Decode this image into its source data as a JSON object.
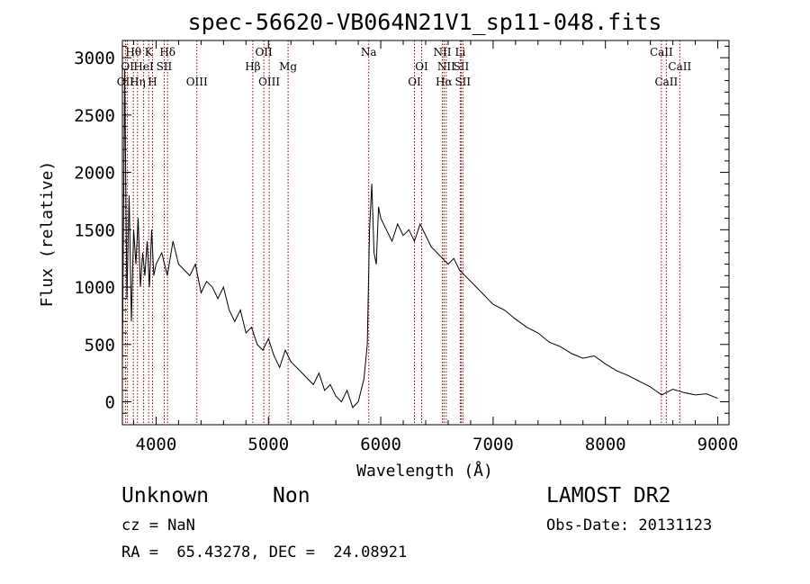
{
  "chart_data": {
    "type": "line",
    "title": "spec-56620-VB064N21V1_sp11-048.fits",
    "xlabel": "Wavelength (Å)",
    "ylabel": "Flux (relative)",
    "xlim": [
      3700,
      9100
    ],
    "ylim": [
      -200,
      3150
    ],
    "xticks": [
      4000,
      5000,
      6000,
      7000,
      8000,
      9000
    ],
    "yticks": [
      0,
      500,
      1000,
      1500,
      2000,
      2500,
      3000
    ],
    "grid": false,
    "series": [
      {
        "x": [
          3700,
          3720,
          3740,
          3760,
          3780,
          3800,
          3820,
          3840,
          3860,
          3880,
          3900,
          3920,
          3940,
          3960,
          3980,
          4000,
          4050,
          4100,
          4150,
          4200,
          4250,
          4300,
          4350,
          4400,
          4450,
          4500,
          4550,
          4600,
          4650,
          4700,
          4750,
          4800,
          4850,
          4900,
          4950,
          5000,
          5050,
          5100,
          5150,
          5200,
          5250,
          5300,
          5350,
          5400,
          5450,
          5500,
          5550,
          5600,
          5650,
          5700,
          5750,
          5800,
          5850,
          5880,
          5900,
          5920,
          5940,
          5960,
          5980,
          6000,
          6050,
          6100,
          6150,
          6200,
          6250,
          6300,
          6350,
          6400,
          6450,
          6500,
          6550,
          6600,
          6650,
          6700,
          6750,
          6800,
          6850,
          6900,
          6950,
          7000,
          7100,
          7200,
          7300,
          7400,
          7500,
          7600,
          7700,
          7800,
          7900,
          8000,
          8100,
          8200,
          8300,
          8400,
          8500,
          8600,
          8700,
          8800,
          8900,
          9000
        ],
        "y": [
          300,
          2900,
          900,
          1800,
          700,
          1500,
          1200,
          1600,
          1000,
          1300,
          1100,
          1400,
          1000,
          1500,
          1100,
          1200,
          1300,
          1100,
          1400,
          1200,
          1150,
          1100,
          1200,
          950,
          1050,
          1000,
          900,
          1000,
          800,
          700,
          800,
          600,
          650,
          500,
          450,
          550,
          400,
          300,
          450,
          350,
          300,
          250,
          200,
          150,
          250,
          100,
          150,
          50,
          0,
          100,
          -50,
          0,
          200,
          500,
          1500,
          1900,
          1300,
          1200,
          1700,
          1600,
          1500,
          1400,
          1550,
          1450,
          1500,
          1400,
          1550,
          1450,
          1350,
          1300,
          1250,
          1200,
          1250,
          1150,
          1100,
          1050,
          1000,
          950,
          900,
          850,
          800,
          720,
          650,
          600,
          520,
          480,
          420,
          380,
          400,
          330,
          270,
          230,
          180,
          130,
          60,
          110,
          80,
          60,
          70,
          30
        ]
      }
    ],
    "spectral_lines": [
      {
        "label": "Hθ",
        "x": 3798,
        "row": 1
      },
      {
        "label": "K",
        "x": 3934,
        "row": 1
      },
      {
        "label": "Hδ",
        "x": 4102,
        "row": 1
      },
      {
        "label": "OII",
        "x": 3727,
        "row": 3
      },
      {
        "label": "OI",
        "x": 3745,
        "row": 2
      },
      {
        "label": "HeI",
        "x": 3889,
        "row": 2
      },
      {
        "label": "SII",
        "x": 4072,
        "row": 2
      },
      {
        "label": "Hη",
        "x": 3835,
        "row": 3
      },
      {
        "label": "H",
        "x": 3968,
        "row": 3
      },
      {
        "label": "OIII",
        "x": 4363,
        "row": 3
      },
      {
        "label": "OII",
        "x": 4959,
        "row": 1
      },
      {
        "label": "Hβ",
        "x": 4861,
        "row": 2
      },
      {
        "label": "Mg",
        "x": 5175,
        "row": 2
      },
      {
        "label": "OIII",
        "x": 5007,
        "row": 3
      },
      {
        "label": "Na",
        "x": 5893,
        "row": 1
      },
      {
        "label": "OI",
        "x": 6364,
        "row": 2
      },
      {
        "label": "OI",
        "x": 6300,
        "row": 3
      },
      {
        "label": "NII",
        "x": 6548,
        "row": 1
      },
      {
        "label": "Li",
        "x": 6708,
        "row": 1
      },
      {
        "label": "NII",
        "x": 6583,
        "row": 2
      },
      {
        "label": "SII",
        "x": 6716,
        "row": 2
      },
      {
        "label": "Hα",
        "x": 6563,
        "row": 3
      },
      {
        "label": "SII",
        "x": 6731,
        "row": 3
      },
      {
        "label": "CaII",
        "x": 8498,
        "row": 1
      },
      {
        "label": "CaII",
        "x": 8662,
        "row": 2
      },
      {
        "label": "CaII",
        "x": 8542,
        "row": 3
      }
    ],
    "line_color": "#8b0000"
  },
  "info": {
    "class": "Unknown",
    "subclass": "Non",
    "cz": "cz = NaN",
    "coords": "RA =  65.43278, DEC =  24.08921",
    "survey": "LAMOST DR2",
    "obs_date": "Obs-Date: 20131123"
  }
}
